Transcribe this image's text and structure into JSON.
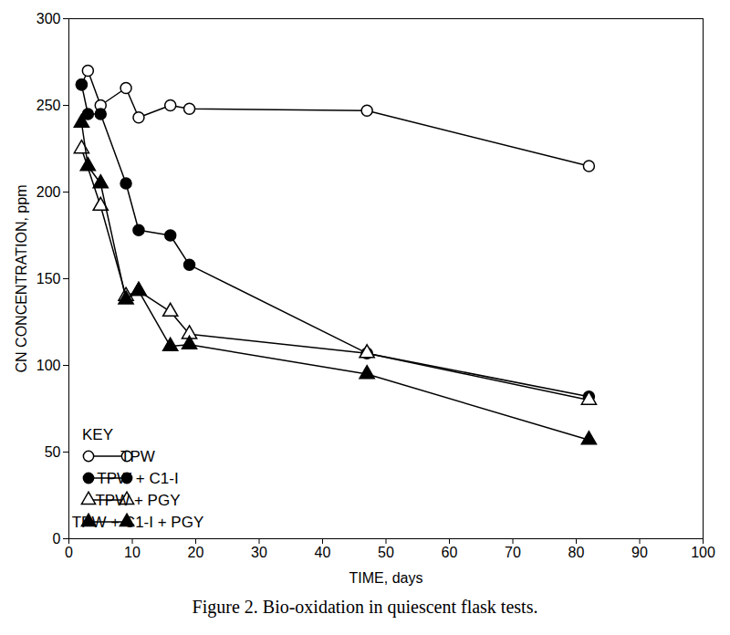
{
  "chart_data": {
    "type": "line",
    "title": "Figure 2.  Bio-oxidation in quiescent flask tests.",
    "x_label": "TIME, days",
    "y_label": "CN CONCENTRATION, ppm",
    "legend_title": "KEY",
    "legend": "lower left",
    "grid": false,
    "xlim": [
      0,
      100
    ],
    "xticks": [
      0,
      10,
      20,
      30,
      40,
      50,
      60,
      70,
      80,
      90,
      100
    ],
    "ylim": [
      0,
      300
    ],
    "yticks": [
      0,
      50,
      100,
      150,
      200,
      250,
      300
    ],
    "series": [
      {
        "name": "TPW",
        "color": "#000000",
        "marker": "open_circle",
        "x": [
          2,
          3,
          5,
          9,
          11,
          16,
          19,
          47,
          82
        ],
        "values": [
          262,
          270,
          250,
          260,
          243,
          250,
          248,
          247,
          215
        ]
      },
      {
        "name": "TPW + C1-I",
        "color": "#000000",
        "marker": "circle",
        "x": [
          2,
          3,
          5,
          9,
          11,
          16,
          19,
          47,
          82
        ],
        "values": [
          262,
          245,
          245,
          205,
          178,
          175,
          158,
          107,
          82
        ]
      },
      {
        "name": "TPW + PGY",
        "color": "#000000",
        "marker": "open_triangle",
        "x": [
          2,
          5,
          9,
          11,
          16,
          19,
          47,
          82
        ],
        "values": [
          225,
          192,
          140,
          143,
          131,
          118,
          107,
          80
        ]
      },
      {
        "name": "TPW + C1-I + PGY",
        "color": "#000000",
        "marker": "triangle",
        "x": [
          2,
          3,
          5,
          9,
          11,
          16,
          19,
          47,
          82
        ],
        "values": [
          240,
          215,
          205,
          138,
          143,
          111,
          112,
          95,
          57
        ]
      }
    ]
  }
}
